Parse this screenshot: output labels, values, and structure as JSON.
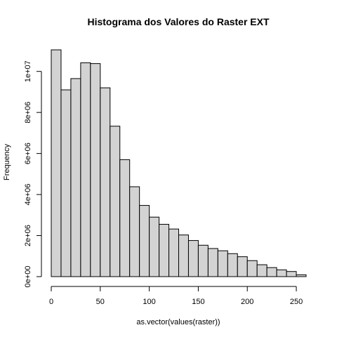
{
  "chart_data": {
    "type": "bar",
    "title": "Histograma dos Valores do Raster EXT",
    "xlabel": "as.vector(values(raster))",
    "ylabel": "Frequency",
    "bins": [
      {
        "x0": 0,
        "x1": 10,
        "count": 11050000
      },
      {
        "x0": 10,
        "x1": 20,
        "count": 9100000
      },
      {
        "x0": 20,
        "x1": 30,
        "count": 9650000
      },
      {
        "x0": 30,
        "x1": 40,
        "count": 10420000
      },
      {
        "x0": 40,
        "x1": 50,
        "count": 10380000
      },
      {
        "x0": 50,
        "x1": 60,
        "count": 9200000
      },
      {
        "x0": 60,
        "x1": 70,
        "count": 7330000
      },
      {
        "x0": 70,
        "x1": 80,
        "count": 5700000
      },
      {
        "x0": 80,
        "x1": 90,
        "count": 4380000
      },
      {
        "x0": 90,
        "x1": 100,
        "count": 3470000
      },
      {
        "x0": 100,
        "x1": 110,
        "count": 2900000
      },
      {
        "x0": 110,
        "x1": 120,
        "count": 2550000
      },
      {
        "x0": 120,
        "x1": 130,
        "count": 2320000
      },
      {
        "x0": 130,
        "x1": 140,
        "count": 2030000
      },
      {
        "x0": 140,
        "x1": 150,
        "count": 1760000
      },
      {
        "x0": 150,
        "x1": 160,
        "count": 1530000
      },
      {
        "x0": 160,
        "x1": 170,
        "count": 1370000
      },
      {
        "x0": 170,
        "x1": 180,
        "count": 1260000
      },
      {
        "x0": 180,
        "x1": 190,
        "count": 1120000
      },
      {
        "x0": 190,
        "x1": 200,
        "count": 970000
      },
      {
        "x0": 200,
        "x1": 210,
        "count": 780000
      },
      {
        "x0": 210,
        "x1": 220,
        "count": 580000
      },
      {
        "x0": 220,
        "x1": 230,
        "count": 440000
      },
      {
        "x0": 230,
        "x1": 240,
        "count": 330000
      },
      {
        "x0": 240,
        "x1": 250,
        "count": 250000
      },
      {
        "x0": 250,
        "x1": 260,
        "count": 90000
      }
    ],
    "xlim": [
      0,
      260
    ],
    "ylim": [
      0,
      11050000
    ],
    "x_ticks": [
      0,
      50,
      100,
      150,
      200,
      250
    ],
    "x_tick_labels": [
      "0",
      "50",
      "100",
      "150",
      "200",
      "250"
    ],
    "y_ticks": [
      0,
      2000000,
      4000000,
      6000000,
      8000000,
      10000000
    ],
    "y_tick_labels": [
      "0e+00",
      "2e+06",
      "4e+06",
      "6e+06",
      "8e+06",
      "1e+07"
    ],
    "bar_fill": "#d3d3d3",
    "bar_stroke": "#000000",
    "grid": false,
    "legend": "none"
  }
}
